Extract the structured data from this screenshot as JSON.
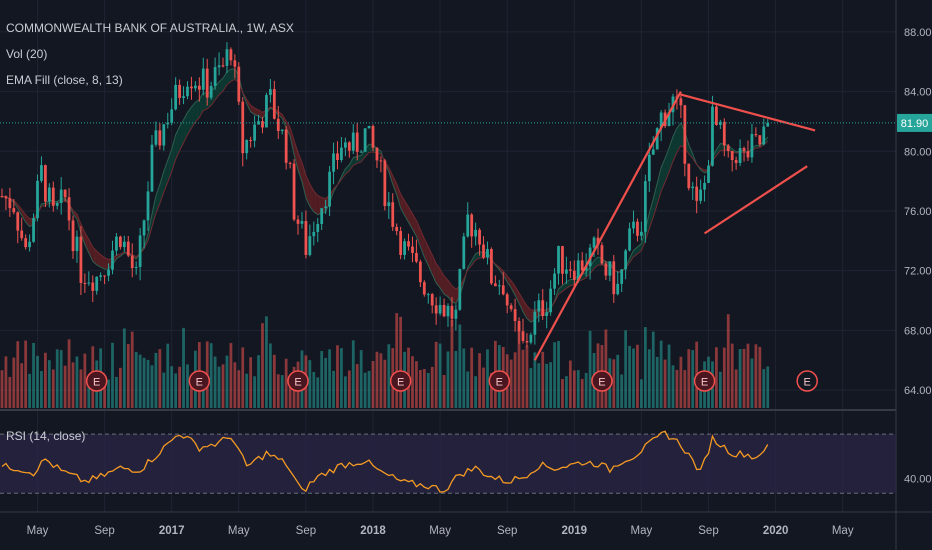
{
  "header": {
    "title": "COMMONWEALTH BANK OF AUSTRALIA., 1W, ASX",
    "vol_label": "Vol (20)",
    "ema_label": "EMA Fill (close, 8, 13)",
    "rsi_label": "RSI (14, close)"
  },
  "colors": {
    "background": "#131722",
    "up": "#26a69a",
    "down": "#ef5350",
    "ema_fast": "#0d3b33",
    "ema_slow": "#5a1f24",
    "rsi_line": "#f59a23",
    "rsi_band": "#2a2545",
    "trendline": "#f0504c",
    "price_line": "#26a69a"
  },
  "chart_data": {
    "type": "candlestick",
    "symbol": "COMMONWEALTH BANK OF AUSTRALIA.",
    "interval": "1W",
    "exchange": "ASX",
    "last_price": 81.9,
    "price_axis": {
      "ticks": [
        88.0,
        84.0,
        80.0,
        76.0,
        72.0,
        68.0,
        64.0
      ],
      "range": [
        62.8,
        89.6
      ]
    },
    "rsi_axis": {
      "ticks": [
        40.0
      ],
      "range": [
        20,
        85
      ],
      "band": [
        30,
        70
      ]
    },
    "time_axis": {
      "labels": [
        "May",
        "Sep",
        "2017",
        "May",
        "Sep",
        "2018",
        "May",
        "Sep",
        "2019",
        "May",
        "Sep",
        "2020",
        "May"
      ],
      "label_weeks": [
        9,
        26,
        43,
        60,
        77,
        94,
        111,
        128,
        145,
        162,
        179,
        196,
        213
      ],
      "total_weeks": 227
    },
    "last_bar_week": 194,
    "price_keypoints": [
      [
        0,
        77.0
      ],
      [
        3,
        76.5
      ],
      [
        6,
        73.2
      ],
      [
        10,
        78.5
      ],
      [
        13,
        75.6
      ],
      [
        16,
        76.8
      ],
      [
        20,
        72.0
      ],
      [
        24,
        71.6
      ],
      [
        26,
        72.4
      ],
      [
        30,
        74.5
      ],
      [
        34,
        71.4
      ],
      [
        38,
        79.6
      ],
      [
        42,
        82.5
      ],
      [
        47,
        85.2
      ],
      [
        52,
        84.4
      ],
      [
        56,
        85.6
      ],
      [
        58,
        87.0
      ],
      [
        61,
        80.2
      ],
      [
        64,
        81.6
      ],
      [
        68,
        83.4
      ],
      [
        72,
        80.2
      ],
      [
        74,
        76.2
      ],
      [
        77,
        73.6
      ],
      [
        80,
        76.0
      ],
      [
        83,
        78.0
      ],
      [
        86,
        80.5
      ],
      [
        89,
        80.2
      ],
      [
        92,
        81.2
      ],
      [
        95,
        79.4
      ],
      [
        98,
        76.4
      ],
      [
        102,
        73.4
      ],
      [
        106,
        71.5
      ],
      [
        111,
        69.7
      ],
      [
        115,
        68.9
      ],
      [
        118,
        75.4
      ],
      [
        121,
        74.5
      ],
      [
        124,
        71.6
      ],
      [
        127,
        71.2
      ],
      [
        129,
        68.5
      ],
      [
        132,
        66.9
      ],
      [
        135,
        68.8
      ],
      [
        138,
        70.1
      ],
      [
        141,
        72.7
      ],
      [
        146,
        72.3
      ],
      [
        150,
        73.3
      ],
      [
        153,
        72.0
      ],
      [
        156,
        70.8
      ],
      [
        159,
        74.0
      ],
      [
        162,
        75.4
      ],
      [
        164,
        79.0
      ],
      [
        167,
        82.3
      ],
      [
        170,
        83.3
      ],
      [
        172,
        82.0
      ],
      [
        174,
        78.4
      ],
      [
        176,
        76.0
      ],
      [
        178,
        77.8
      ],
      [
        180,
        82.1
      ],
      [
        182,
        81.0
      ],
      [
        184,
        79.0
      ],
      [
        186,
        80.0
      ],
      [
        188,
        79.5
      ],
      [
        190,
        80.2
      ],
      [
        192,
        80.5
      ],
      [
        194,
        81.9
      ]
    ],
    "rsi_keypoints": [
      [
        0,
        48
      ],
      [
        4,
        47
      ],
      [
        8,
        44
      ],
      [
        11,
        53
      ],
      [
        15,
        45
      ],
      [
        21,
        38
      ],
      [
        24,
        40
      ],
      [
        30,
        47
      ],
      [
        35,
        46
      ],
      [
        40,
        58
      ],
      [
        45,
        71
      ],
      [
        50,
        61
      ],
      [
        55,
        64
      ],
      [
        58,
        69
      ],
      [
        62,
        48
      ],
      [
        67,
        57
      ],
      [
        72,
        50
      ],
      [
        76,
        31
      ],
      [
        80,
        41
      ],
      [
        86,
        49
      ],
      [
        92,
        52
      ],
      [
        96,
        44
      ],
      [
        102,
        37
      ],
      [
        108,
        35
      ],
      [
        112,
        32
      ],
      [
        116,
        43
      ],
      [
        120,
        47
      ],
      [
        124,
        41
      ],
      [
        128,
        38
      ],
      [
        132,
        41
      ],
      [
        136,
        49
      ],
      [
        140,
        47
      ],
      [
        144,
        49
      ],
      [
        147,
        51
      ],
      [
        151,
        50
      ],
      [
        154,
        46
      ],
      [
        157,
        52
      ],
      [
        160,
        55
      ],
      [
        164,
        63
      ],
      [
        168,
        71
      ],
      [
        172,
        63
      ],
      [
        175,
        52
      ],
      [
        177,
        44
      ],
      [
        180,
        67
      ],
      [
        183,
        61
      ],
      [
        186,
        56
      ],
      [
        188,
        57
      ],
      [
        191,
        54
      ],
      [
        194,
        63
      ]
    ],
    "earnings_weeks": [
      24,
      50,
      75,
      101,
      126,
      152,
      178,
      204
    ],
    "trendlines": [
      {
        "name": "rising-wedge-left",
        "points": [
          [
            135,
            66.0
          ],
          [
            172,
            84.0
          ]
        ]
      },
      {
        "name": "upper-triangle",
        "points": [
          [
            172,
            83.8
          ],
          [
            206,
            81.4
          ]
        ]
      },
      {
        "name": "lower-triangle",
        "points": [
          [
            178,
            74.5
          ],
          [
            204,
            79.0
          ]
        ]
      }
    ]
  }
}
